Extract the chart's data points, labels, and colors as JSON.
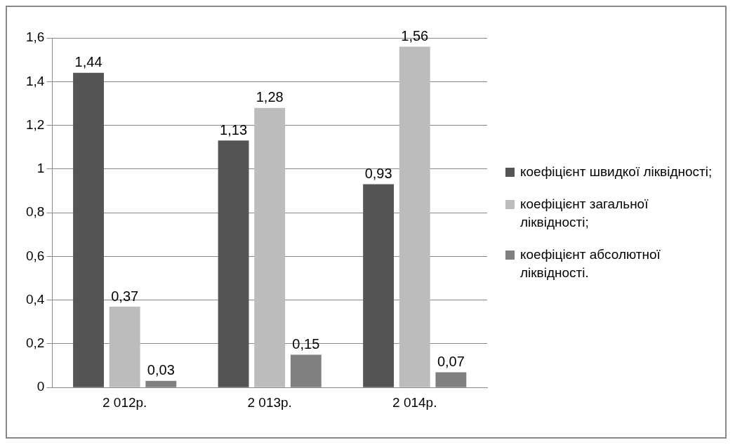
{
  "chart_data": {
    "type": "bar",
    "categories": [
      "2 012р.",
      "2 013р.",
      "2 014р."
    ],
    "series": [
      {
        "name": "коефіцієнт швидкої ліквідності;",
        "color": "#555555",
        "values": [
          1.44,
          1.13,
          0.93
        ],
        "value_labels": [
          "1,44",
          "1,13",
          "0,93"
        ]
      },
      {
        "name": "коефіцієнт загальної ліквідності;",
        "color": "#bcbcbc",
        "values": [
          0.37,
          1.28,
          1.56
        ],
        "value_labels": [
          "0,37",
          "1,28",
          "1,56"
        ]
      },
      {
        "name": "коефіцієнт абсолютної ліквідності.",
        "color": "#808080",
        "values": [
          0.03,
          0.15,
          0.07
        ],
        "value_labels": [
          "0,03",
          "0,15",
          "0,07"
        ]
      }
    ],
    "ylim": [
      0,
      1.6
    ],
    "yticks": [
      0,
      {
        "value": 0.2,
        "label": "0,2"
      },
      {
        "value": 0.4,
        "label": "0,4"
      },
      {
        "value": 0.6,
        "label": "0,6"
      },
      {
        "value": 0.8,
        "label": "0,8"
      },
      1,
      {
        "value": 1.2,
        "label": "1,2"
      },
      {
        "value": 1.4,
        "label": "1,4"
      },
      {
        "value": 1.6,
        "label": "1,6"
      }
    ],
    "grid": "y",
    "legend": "right"
  }
}
